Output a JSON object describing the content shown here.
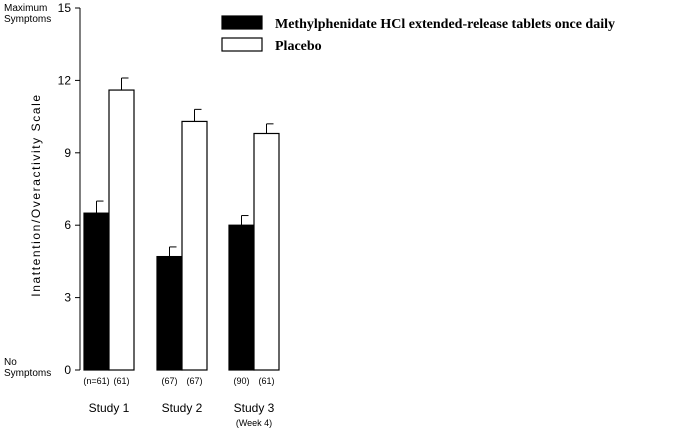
{
  "chart_data": {
    "type": "bar",
    "title": "",
    "ylabel": "Inattention/Overactivity Scale",
    "y_top_label": [
      "Maximum",
      "Symptoms"
    ],
    "y_bottom_label": [
      "No",
      "Symptoms"
    ],
    "ylim": [
      0,
      15
    ],
    "yticks": [
      0,
      3,
      6,
      9,
      12,
      15
    ],
    "grid": false,
    "legend_position": "top-right",
    "categories": [
      "Study 1",
      "Study 2",
      "Study 3"
    ],
    "category_sublabels": [
      "",
      "",
      "(Week 4)"
    ],
    "series": [
      {
        "name": "Methylphenidate HCl extended-release tablets once daily",
        "color": "#000000",
        "values": [
          6.5,
          4.7,
          6.0
        ],
        "error_upper": [
          7.0,
          5.1,
          6.4
        ],
        "n_labels": [
          "(n=61)",
          "(67)",
          "(90)"
        ]
      },
      {
        "name": "Placebo",
        "color": "#ffffff",
        "values": [
          11.6,
          10.3,
          9.8
        ],
        "error_upper": [
          12.1,
          10.8,
          10.2
        ],
        "n_labels": [
          "(61)",
          "(67)",
          "(61)"
        ]
      }
    ]
  }
}
